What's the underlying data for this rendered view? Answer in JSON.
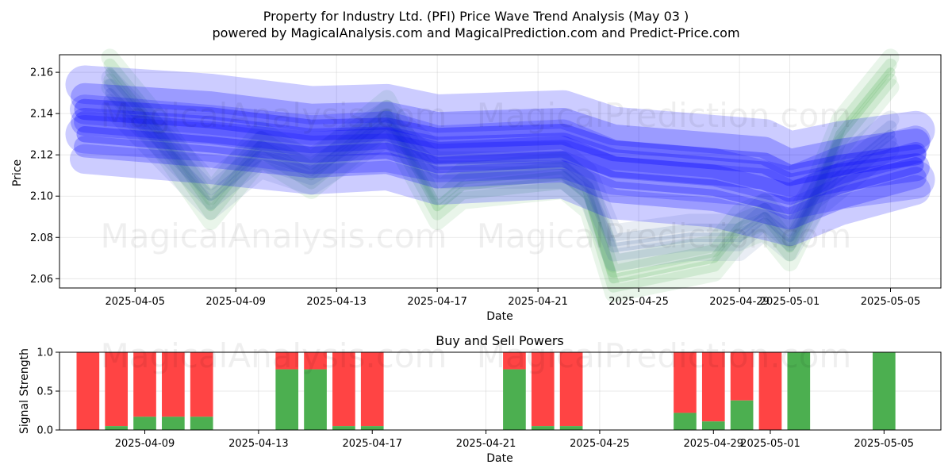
{
  "title_line1": "Property for Industry Ltd. (PFI) Price Wave Trend Analysis (May 03 )",
  "title_line2": "powered by MagicalAnalysis.com and MagicalPrediction.com and Predict-Price.com",
  "watermarks": [
    "MagicalAnalysis.com",
    "MagicalPrediction.com"
  ],
  "colors": {
    "green": "#4caf50",
    "red": "#ff4444",
    "blue": "#0000ff"
  },
  "chart_data": [
    {
      "type": "area",
      "title": "",
      "xlabel": "Date",
      "ylabel": "Price",
      "xlim": [
        "2025-04-02",
        "2025-05-07"
      ],
      "ylim": [
        2.0555,
        2.1685
      ],
      "x_ticks": [
        "2025-04-05",
        "2025-04-09",
        "2025-04-13",
        "2025-04-17",
        "2025-04-21",
        "2025-04-25",
        "2025-04-29",
        "2025-05-01",
        "2025-05-05"
      ],
      "y_ticks": [
        "2.06",
        "2.08",
        "2.10",
        "2.12",
        "2.14",
        "2.16"
      ],
      "grid": true,
      "series": [
        {
          "color": "green",
          "points": [
            [
              "2025-04-04",
              2.16
            ],
            [
              "2025-04-06",
              2.13
            ],
            [
              "2025-04-08",
              2.095
            ],
            [
              "2025-04-10",
              2.125
            ],
            [
              "2025-04-12",
              2.11
            ],
            [
              "2025-04-15",
              2.14
            ],
            [
              "2025-04-17",
              2.095
            ],
            [
              "2025-04-18",
              2.105
            ],
            [
              "2025-04-22",
              2.11
            ],
            [
              "2025-04-23",
              2.1
            ],
            [
              "2025-04-24",
              2.06
            ],
            [
              "2025-04-28",
              2.07
            ],
            [
              "2025-04-29",
              2.085
            ],
            [
              "2025-04-30",
              2.09
            ],
            [
              "2025-05-01",
              2.075
            ],
            [
              "2025-05-02",
              2.1
            ],
            [
              "2025-05-03",
              2.13
            ],
            [
              "2025-05-05",
              2.16
            ]
          ]
        },
        {
          "color": "steelblue",
          "points": [
            [
              "2025-04-04",
              2.15
            ],
            [
              "2025-04-06",
              2.125
            ],
            [
              "2025-04-08",
              2.1
            ],
            [
              "2025-04-10",
              2.12
            ],
            [
              "2025-04-12",
              2.112
            ],
            [
              "2025-04-15",
              2.135
            ],
            [
              "2025-04-17",
              2.115
            ],
            [
              "2025-04-22",
              2.115
            ],
            [
              "2025-04-23",
              2.105
            ],
            [
              "2025-04-24",
              2.075
            ],
            [
              "2025-04-27",
              2.08
            ],
            [
              "2025-04-29",
              2.08
            ],
            [
              "2025-04-30",
              2.09
            ],
            [
              "2025-05-01",
              2.08
            ],
            [
              "2025-05-02",
              2.1
            ],
            [
              "2025-05-05",
              2.13
            ]
          ]
        },
        {
          "color": "blue",
          "points": [
            [
              "2025-04-03",
              2.142
            ],
            [
              "2025-04-08",
              2.138
            ],
            [
              "2025-04-12",
              2.132
            ],
            [
              "2025-04-15",
              2.133
            ],
            [
              "2025-04-17",
              2.128
            ],
            [
              "2025-04-22",
              2.13
            ],
            [
              "2025-04-24",
              2.122
            ],
            [
              "2025-04-28",
              2.118
            ],
            [
              "2025-04-30",
              2.116
            ],
            [
              "2025-05-01",
              2.11
            ],
            [
              "2025-05-03",
              2.115
            ],
            [
              "2025-05-06",
              2.12
            ]
          ]
        },
        {
          "color": "blue",
          "points": [
            [
              "2025-04-03",
              2.13
            ],
            [
              "2025-04-08",
              2.125
            ],
            [
              "2025-04-12",
              2.12
            ],
            [
              "2025-04-15",
              2.122
            ],
            [
              "2025-04-17",
              2.115
            ],
            [
              "2025-04-22",
              2.118
            ],
            [
              "2025-04-24",
              2.108
            ],
            [
              "2025-04-28",
              2.104
            ],
            [
              "2025-05-01",
              2.095
            ],
            [
              "2025-05-03",
              2.105
            ],
            [
              "2025-05-06",
              2.115
            ]
          ]
        }
      ]
    },
    {
      "type": "bar",
      "title": "Buy and Sell Powers",
      "xlabel": "Date",
      "ylabel": "Signal Strength",
      "xlim": [
        "2025-04-06",
        "2025-05-07"
      ],
      "ylim": [
        0,
        1.0
      ],
      "x_ticks": [
        "2025-04-09",
        "2025-04-13",
        "2025-04-17",
        "2025-04-21",
        "2025-04-25",
        "2025-04-29",
        "2025-05-01",
        "2025-05-05"
      ],
      "y_ticks": [
        "0.0",
        "0.5",
        "1.0"
      ],
      "grid": true,
      "bars": [
        {
          "date": "2025-04-07",
          "buy": 0.0
        },
        {
          "date": "2025-04-08",
          "buy": 0.05
        },
        {
          "date": "2025-04-09",
          "buy": 0.17
        },
        {
          "date": "2025-04-10",
          "buy": 0.17
        },
        {
          "date": "2025-04-11",
          "buy": 0.17
        },
        {
          "date": "2025-04-14",
          "buy": 0.78
        },
        {
          "date": "2025-04-15",
          "buy": 0.78
        },
        {
          "date": "2025-04-16",
          "buy": 0.05
        },
        {
          "date": "2025-04-17",
          "buy": 0.05
        },
        {
          "date": "2025-04-22",
          "buy": 0.78
        },
        {
          "date": "2025-04-23",
          "buy": 0.05
        },
        {
          "date": "2025-04-24",
          "buy": 0.05
        },
        {
          "date": "2025-04-28",
          "buy": 0.22
        },
        {
          "date": "2025-04-29",
          "buy": 0.11
        },
        {
          "date": "2025-04-30",
          "buy": 0.38
        },
        {
          "date": "2025-05-01",
          "buy": 0.0
        },
        {
          "date": "2025-05-02",
          "buy": 1.0
        },
        {
          "date": "2025-05-05",
          "buy": 1.0
        }
      ]
    }
  ]
}
